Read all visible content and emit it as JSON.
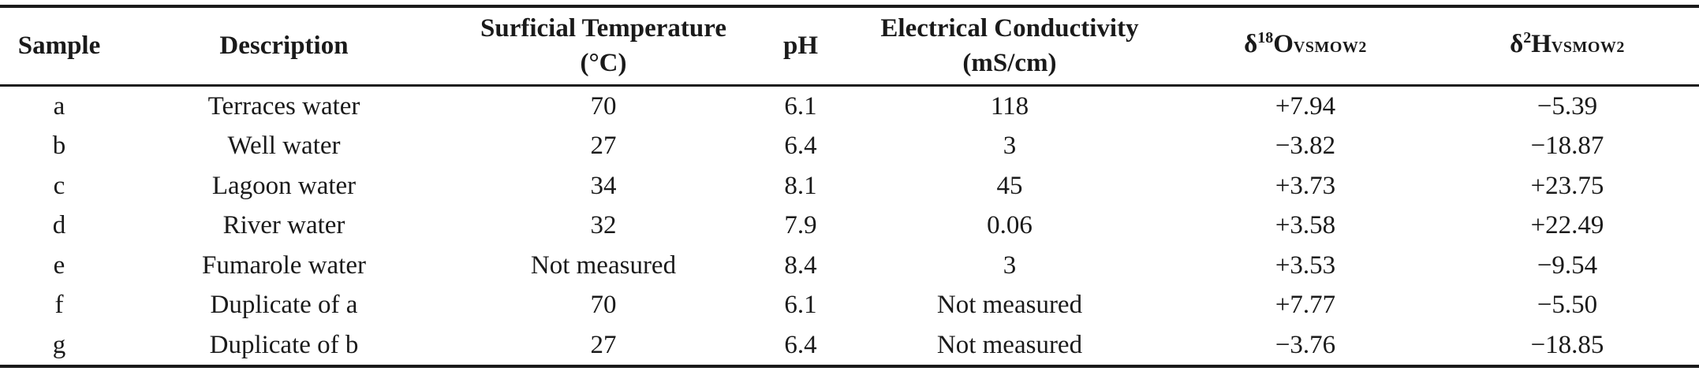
{
  "table": {
    "headers": {
      "sample": "Sample",
      "description": "Description",
      "temperature_line1": "Surficial Temperature",
      "temperature_line2": "(°C)",
      "ph": "pH",
      "conductivity_line1": "Electrical Conductivity",
      "conductivity_line2": "(mS/cm)",
      "delta_o_prefix": "δ",
      "delta_o_sup": "18",
      "delta_o_main": "O",
      "delta_o_sub": "VSMOW2",
      "delta_h_prefix": "δ",
      "delta_h_sup": "2",
      "delta_h_main": "H",
      "delta_h_sub": "VSMOW2"
    },
    "rows": [
      {
        "sample": "a",
        "description": "Terraces water",
        "temperature": "70",
        "ph": "6.1",
        "conductivity": "118",
        "delta_o": "+7.94",
        "delta_h": "−5.39"
      },
      {
        "sample": "b",
        "description": "Well water",
        "temperature": "27",
        "ph": "6.4",
        "conductivity": "3",
        "delta_o": "−3.82",
        "delta_h": "−18.87"
      },
      {
        "sample": "c",
        "description": "Lagoon water",
        "temperature": "34",
        "ph": "8.1",
        "conductivity": "45",
        "delta_o": "+3.73",
        "delta_h": "+23.75"
      },
      {
        "sample": "d",
        "description": "River water",
        "temperature": "32",
        "ph": "7.9",
        "conductivity": "0.06",
        "delta_o": "+3.58",
        "delta_h": "+22.49"
      },
      {
        "sample": "e",
        "description": "Fumarole water",
        "temperature": "Not measured",
        "ph": "8.4",
        "conductivity": "3",
        "delta_o": "+3.53",
        "delta_h": "−9.54"
      },
      {
        "sample": "f",
        "description": "Duplicate of a",
        "temperature": "70",
        "ph": "6.1",
        "conductivity": "Not measured",
        "delta_o": "+7.77",
        "delta_h": "−5.50"
      },
      {
        "sample": "g",
        "description": "Duplicate of b",
        "temperature": "27",
        "ph": "6.4",
        "conductivity": "Not measured",
        "delta_o": "−3.76",
        "delta_h": "−18.85"
      }
    ]
  }
}
